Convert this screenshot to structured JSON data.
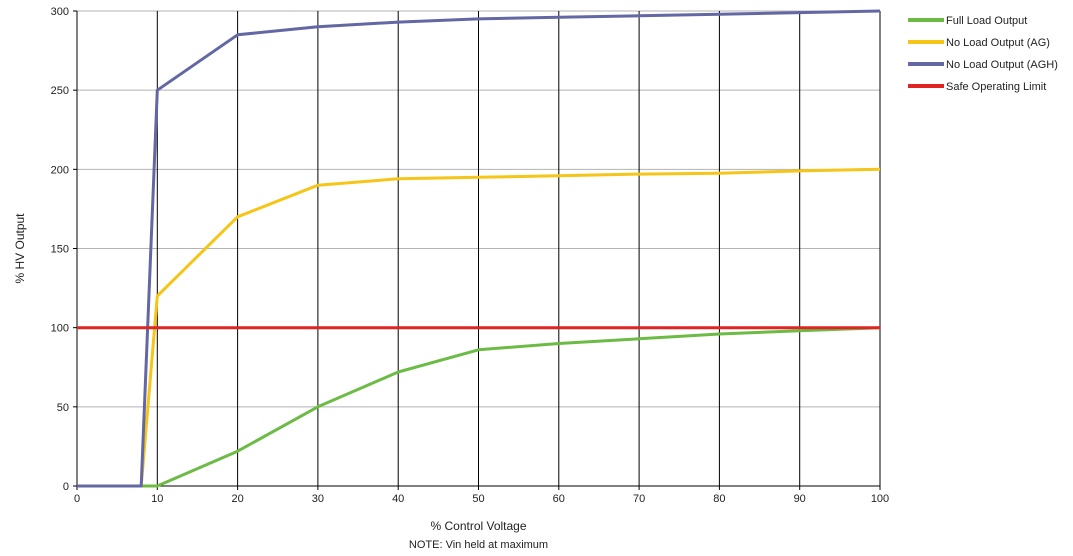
{
  "chart_data": {
    "type": "line",
    "title": "",
    "xlabel": "% Control Voltage",
    "ylabel": "% HV Output",
    "note": "NOTE: Vin held at maximum",
    "xlim": [
      0,
      100
    ],
    "ylim": [
      0,
      300
    ],
    "x_ticks": [
      0,
      10,
      20,
      30,
      40,
      50,
      60,
      70,
      80,
      90,
      100
    ],
    "y_ticks": [
      0,
      50,
      100,
      150,
      200,
      250,
      300
    ],
    "grid": {
      "horizontal": true,
      "vertical": true
    },
    "legend_position": "right",
    "series": [
      {
        "name": "Full Load Output",
        "color": "#6cbb45",
        "points": [
          [
            0,
            0
          ],
          [
            8,
            0
          ],
          [
            10,
            0
          ],
          [
            20,
            22
          ],
          [
            30,
            50
          ],
          [
            40,
            72
          ],
          [
            50,
            86
          ],
          [
            60,
            90
          ],
          [
            70,
            93
          ],
          [
            80,
            96
          ],
          [
            90,
            98
          ],
          [
            100,
            100
          ]
        ]
      },
      {
        "name": "No Load Output (AG)",
        "color": "#f5c518",
        "points": [
          [
            0,
            0
          ],
          [
            8,
            0
          ],
          [
            10,
            120
          ],
          [
            20,
            170
          ],
          [
            30,
            190
          ],
          [
            40,
            194
          ],
          [
            50,
            195
          ],
          [
            60,
            196
          ],
          [
            70,
            197
          ],
          [
            80,
            197.5
          ],
          [
            90,
            199
          ],
          [
            100,
            200
          ]
        ]
      },
      {
        "name": "No Load Output (AGH)",
        "color": "#6367a3",
        "points": [
          [
            0,
            0
          ],
          [
            8,
            0
          ],
          [
            10,
            250
          ],
          [
            20,
            285
          ],
          [
            30,
            290
          ],
          [
            40,
            293
          ],
          [
            50,
            295
          ],
          [
            60,
            296
          ],
          [
            70,
            297
          ],
          [
            80,
            298
          ],
          [
            90,
            299
          ],
          [
            100,
            300
          ]
        ]
      },
      {
        "name": "Safe Operating Limit",
        "color": "#e02424",
        "points": [
          [
            0,
            100
          ],
          [
            100,
            100
          ]
        ]
      }
    ]
  }
}
